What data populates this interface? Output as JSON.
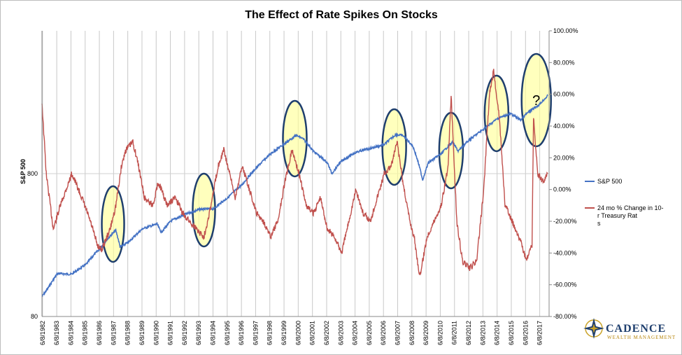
{
  "chart_data": {
    "type": "line",
    "title": "The Effect of Rate Spikes On Stocks",
    "ylabel_left": "S&P 500",
    "left_axis": {
      "scale": "log",
      "range": [
        80,
        8000
      ],
      "ticks": [
        80,
        800
      ]
    },
    "right_axis": {
      "range": [
        -80,
        100
      ],
      "ticks": [
        -80,
        -60,
        -40,
        -20,
        0,
        20,
        40,
        60,
        80,
        100
      ],
      "tick_labels": [
        "-80.00%",
        "-60.00%",
        "-40.00%",
        "-20.00%",
        "0.00%",
        "20.00%",
        "40.00%",
        "60.00%",
        "80.00%",
        "100.00%"
      ]
    },
    "x_categories": [
      "6/8/1982",
      "6/8/1983",
      "6/8/1984",
      "6/8/1985",
      "6/8/1986",
      "6/8/1987",
      "6/8/1988",
      "6/8/1989",
      "6/8/1990",
      "6/8/1991",
      "6/8/1992",
      "6/8/1993",
      "6/8/1994",
      "6/8/1995",
      "6/8/1996",
      "6/8/1997",
      "6/8/1998",
      "6/8/1999",
      "6/8/2000",
      "6/8/2001",
      "6/8/2002",
      "6/8/2003",
      "6/8/2004",
      "6/8/2005",
      "6/8/2006",
      "6/8/2007",
      "6/8/2008",
      "6/8/2009",
      "6/8/2010",
      "6/8/2011",
      "6/8/2012",
      "6/8/2013",
      "6/8/2014",
      "6/8/2015",
      "6/8/2016",
      "6/8/2017"
    ],
    "grid": {
      "vertical": true,
      "horizontal": "800 line only"
    },
    "legend_position": "right",
    "series": [
      {
        "name": "S&P 500",
        "axis": "left",
        "color": "#4472C4",
        "points": [
          [
            1982.4,
            110
          ],
          [
            1982.8,
            125
          ],
          [
            1983.5,
            160
          ],
          [
            1984.5,
            158
          ],
          [
            1985.5,
            185
          ],
          [
            1986.5,
            240
          ],
          [
            1987.3,
            300
          ],
          [
            1987.6,
            320
          ],
          [
            1987.9,
            245
          ],
          [
            1988.5,
            265
          ],
          [
            1989.5,
            330
          ],
          [
            1990.5,
            355
          ],
          [
            1990.8,
            310
          ],
          [
            1991.5,
            375
          ],
          [
            1992.5,
            415
          ],
          [
            1993.5,
            450
          ],
          [
            1994.5,
            455
          ],
          [
            1995.5,
            545
          ],
          [
            1996.5,
            670
          ],
          [
            1997.5,
            880
          ],
          [
            1998.5,
            1100
          ],
          [
            1999.5,
            1300
          ],
          [
            2000.3,
            1480
          ],
          [
            2000.8,
            1400
          ],
          [
            2001.5,
            1150
          ],
          [
            2002.5,
            950
          ],
          [
            2002.8,
            800
          ],
          [
            2003.5,
            980
          ],
          [
            2004.5,
            1130
          ],
          [
            2005.5,
            1200
          ],
          [
            2006.5,
            1280
          ],
          [
            2007.3,
            1500
          ],
          [
            2007.8,
            1480
          ],
          [
            2008.5,
            1250
          ],
          [
            2009.2,
            720
          ],
          [
            2009.6,
            950
          ],
          [
            2010.5,
            1100
          ],
          [
            2011.3,
            1330
          ],
          [
            2011.7,
            1150
          ],
          [
            2012.5,
            1380
          ],
          [
            2013.5,
            1640
          ],
          [
            2014.5,
            1950
          ],
          [
            2015.4,
            2100
          ],
          [
            2016.1,
            1900
          ],
          [
            2016.5,
            2100
          ],
          [
            2017.4,
            2430
          ],
          [
            2018.0,
            2800
          ]
        ]
      },
      {
        "name": "24 mo % Change in 10-Yr Treasury Rates",
        "axis": "right",
        "color": "#C0504D",
        "points": [
          [
            1982.4,
            55
          ],
          [
            1982.7,
            10
          ],
          [
            1983.2,
            -25
          ],
          [
            1983.7,
            -10
          ],
          [
            1984.5,
            10
          ],
          [
            1985.2,
            -5
          ],
          [
            1985.8,
            -20
          ],
          [
            1986.3,
            -35
          ],
          [
            1986.6,
            -38
          ],
          [
            1987.2,
            -25
          ],
          [
            1987.6,
            -10
          ],
          [
            1988.0,
            15
          ],
          [
            1988.3,
            25
          ],
          [
            1988.8,
            30
          ],
          [
            1989.2,
            15
          ],
          [
            1989.6,
            -5
          ],
          [
            1990.2,
            -10
          ],
          [
            1990.6,
            5
          ],
          [
            1991.2,
            -10
          ],
          [
            1991.8,
            -5
          ],
          [
            1992.3,
            -15
          ],
          [
            1992.8,
            -20
          ],
          [
            1993.3,
            -25
          ],
          [
            1993.8,
            -30
          ],
          [
            1994.3,
            -10
          ],
          [
            1994.8,
            15
          ],
          [
            1995.2,
            25
          ],
          [
            1995.6,
            10
          ],
          [
            1996.0,
            -5
          ],
          [
            1996.5,
            15
          ],
          [
            1997.0,
            0
          ],
          [
            1997.5,
            -15
          ],
          [
            1998.0,
            -20
          ],
          [
            1998.5,
            -30
          ],
          [
            1999.0,
            -20
          ],
          [
            1999.5,
            5
          ],
          [
            2000.0,
            25
          ],
          [
            2000.5,
            10
          ],
          [
            2001.0,
            -10
          ],
          [
            2001.5,
            -15
          ],
          [
            2002.0,
            -5
          ],
          [
            2002.5,
            -25
          ],
          [
            2003.0,
            -30
          ],
          [
            2003.5,
            -40
          ],
          [
            2004.0,
            -20
          ],
          [
            2004.5,
            0
          ],
          [
            2005.0,
            -15
          ],
          [
            2005.5,
            -20
          ],
          [
            2006.0,
            -5
          ],
          [
            2006.5,
            10
          ],
          [
            2007.0,
            15
          ],
          [
            2007.4,
            30
          ],
          [
            2007.8,
            5
          ],
          [
            2008.3,
            -20
          ],
          [
            2008.6,
            -30
          ],
          [
            2009.0,
            -55
          ],
          [
            2009.5,
            -30
          ],
          [
            2010.0,
            -20
          ],
          [
            2010.5,
            -10
          ],
          [
            2011.0,
            15
          ],
          [
            2011.2,
            60
          ],
          [
            2011.6,
            -20
          ],
          [
            2012.0,
            -45
          ],
          [
            2012.5,
            -50
          ],
          [
            2013.0,
            -45
          ],
          [
            2013.5,
            0
          ],
          [
            2013.9,
            60
          ],
          [
            2014.2,
            75
          ],
          [
            2014.6,
            45
          ],
          [
            2015.0,
            -10
          ],
          [
            2015.5,
            -20
          ],
          [
            2016.0,
            -30
          ],
          [
            2016.5,
            -45
          ],
          [
            2016.9,
            -35
          ],
          [
            2017.0,
            45
          ],
          [
            2017.3,
            10
          ],
          [
            2017.7,
            5
          ],
          [
            2018.0,
            10
          ]
        ]
      }
    ],
    "highlights": [
      {
        "center_year": 1987.4,
        "label": ""
      },
      {
        "center_year": 1993.8,
        "label": ""
      },
      {
        "center_year": 2000.2,
        "label": ""
      },
      {
        "center_year": 2007.2,
        "label": ""
      },
      {
        "center_year": 2011.2,
        "label": ""
      },
      {
        "center_year": 2014.4,
        "label": ""
      },
      {
        "center_year": 2017.2,
        "label": "?"
      }
    ],
    "annotation_colors": {
      "fill": "#FFFF99",
      "stroke": "#1F3F6E"
    }
  },
  "logo": {
    "name": "CADENCE",
    "tagline": "WEALTH MANAGEMENT",
    "icon": "compass-star-icon",
    "colors": {
      "navy": "#1f3f6e",
      "gold": "#c9a227"
    }
  }
}
